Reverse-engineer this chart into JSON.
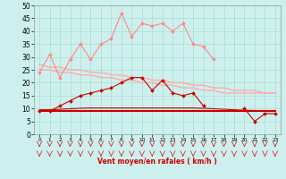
{
  "background_color": "#cdf0ee",
  "grid_color": "#aaddcc",
  "xlabel": "Vent moyen/en rafales ( km/h )",
  "x": [
    0,
    1,
    2,
    3,
    4,
    5,
    6,
    7,
    8,
    9,
    10,
    11,
    12,
    13,
    14,
    15,
    16,
    17,
    18,
    19,
    20,
    21,
    22,
    23
  ],
  "ylim": [
    0,
    50
  ],
  "xlim": [
    -0.5,
    23.5
  ],
  "yticks": [
    0,
    5,
    10,
    15,
    20,
    25,
    30,
    35,
    40,
    45,
    50
  ],
  "series": [
    {
      "name": "rafales_max",
      "color": "#ff8888",
      "linewidth": 0.8,
      "marker": "D",
      "markersize": 2.0,
      "values": [
        24,
        31,
        22,
        29,
        35,
        29,
        35,
        37,
        47,
        38,
        43,
        42,
        43,
        40,
        43,
        35,
        34,
        29,
        null,
        null,
        null,
        null,
        null,
        null
      ]
    },
    {
      "name": "rafales_smooth1",
      "color": "#ffaaaa",
      "linewidth": 1.0,
      "marker": null,
      "values": [
        25,
        25,
        24,
        24,
        23,
        23,
        22,
        22,
        21,
        21,
        20,
        20,
        19,
        19,
        18,
        18,
        17,
        17,
        16,
        16,
        16,
        16,
        16,
        16
      ]
    },
    {
      "name": "rafales_smooth2",
      "color": "#ffaaaa",
      "linewidth": 1.0,
      "marker": null,
      "values": [
        27,
        26,
        26,
        25,
        25,
        24,
        24,
        23,
        23,
        22,
        22,
        21,
        21,
        20,
        20,
        19,
        19,
        18,
        18,
        17,
        17,
        17,
        16,
        16
      ]
    },
    {
      "name": "vent_moyen_markers",
      "color": "#cc0000",
      "linewidth": 0.8,
      "marker": "D",
      "markersize": 2.0,
      "values": [
        9,
        9,
        11,
        13,
        15,
        16,
        17,
        18,
        20,
        22,
        22,
        17,
        21,
        16,
        15,
        16,
        11,
        null,
        null,
        null,
        10,
        5,
        8,
        8
      ]
    },
    {
      "name": "vent_flat1",
      "color": "#cc0000",
      "linewidth": 1.5,
      "marker": null,
      "values": [
        9,
        9,
        9,
        9,
        9,
        9,
        9,
        9,
        9,
        9,
        9,
        9,
        9,
        9,
        9,
        9,
        9,
        9,
        9,
        9,
        9,
        9,
        9,
        9
      ]
    },
    {
      "name": "vent_flat2",
      "color": "#cc0000",
      "linewidth": 0.8,
      "marker": null,
      "values": [
        9.5,
        9.5,
        9.7,
        9.9,
        10.1,
        10.2,
        10.2,
        10.2,
        10.2,
        10.2,
        10.2,
        10.2,
        10.2,
        10.2,
        10.2,
        10.2,
        10.1,
        9.9,
        9.7,
        9.5,
        9.3,
        9.2,
        9.1,
        9.0
      ]
    }
  ]
}
